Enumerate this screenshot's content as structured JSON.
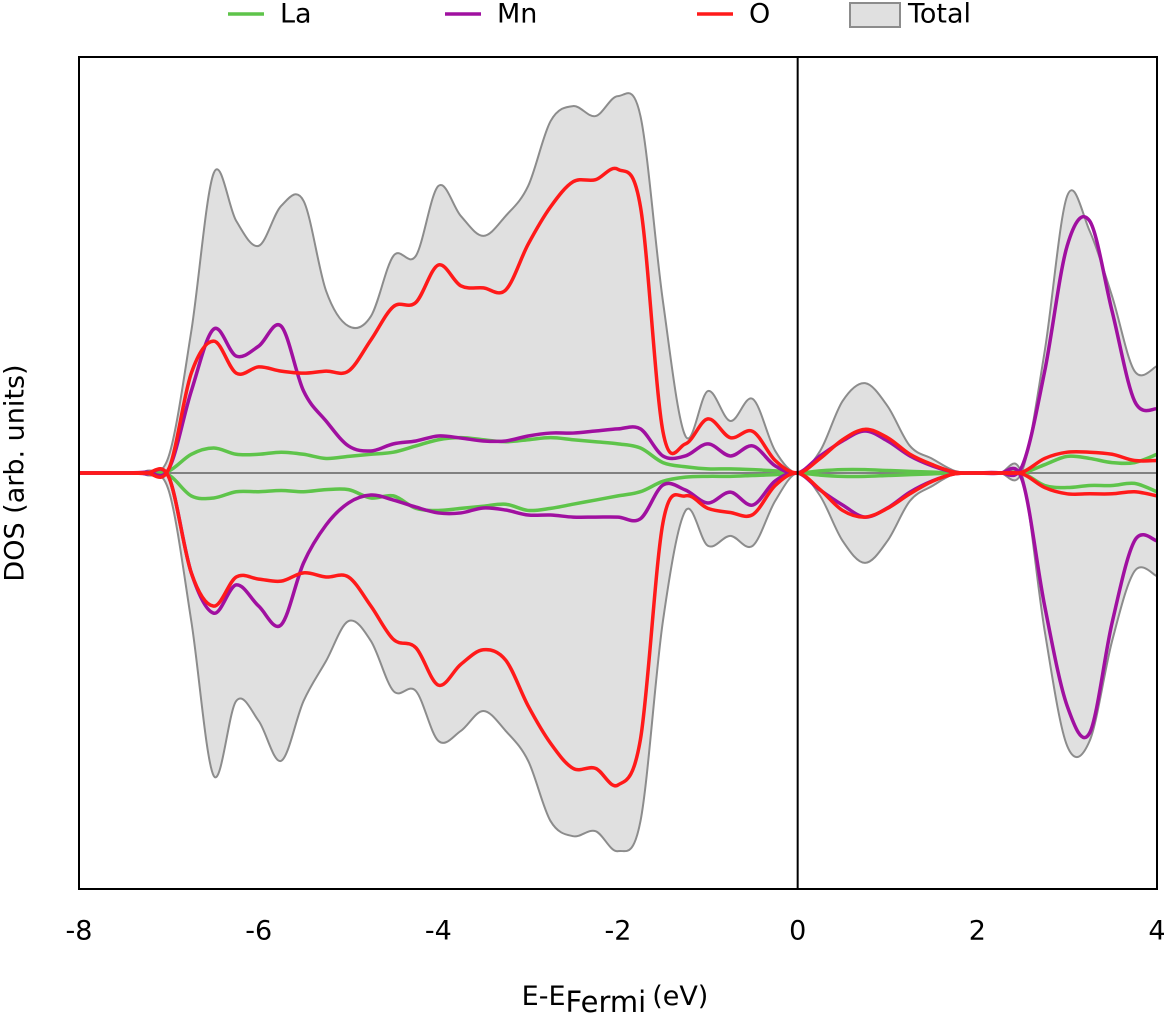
{
  "chart_data": {
    "type": "dos",
    "xlabel": "E-E",
    "xlabel_sub": "Fermi",
    "xlabel_suffix": "(eV)",
    "ylabel": "DOS (arb. units)",
    "xlim": [
      -8,
      4
    ],
    "xticks": [
      -8,
      -6,
      -4,
      -2,
      0,
      2,
      4
    ],
    "ylim": [
      -10,
      10
    ],
    "vline": 0,
    "legend": "top",
    "x": [
      -8,
      -7.75,
      -7.5,
      -7.25,
      -7,
      -6.75,
      -6.5,
      -6.25,
      -6,
      -5.75,
      -5.5,
      -5.25,
      -5,
      -4.75,
      -4.5,
      -4.25,
      -4,
      -3.75,
      -3.5,
      -3.25,
      -3,
      -2.75,
      -2.5,
      -2.25,
      -2,
      -1.75,
      -1.5,
      -1.25,
      -1,
      -0.75,
      -0.5,
      -0.25,
      0,
      0.25,
      0.5,
      0.75,
      1,
      1.25,
      1.5,
      1.75,
      2,
      2.25,
      2.5,
      2.75,
      3,
      3.25,
      3.5,
      3.75,
      4
    ],
    "series": [
      {
        "name": "La",
        "color": "#5ec44a",
        "style": "line",
        "values": [
          0,
          0,
          0,
          0,
          0.05,
          0.45,
          0.6,
          0.45,
          0.45,
          0.5,
          0.45,
          0.35,
          0.4,
          0.45,
          0.5,
          0.65,
          0.8,
          0.85,
          0.8,
          0.75,
          0.8,
          0.85,
          0.8,
          0.75,
          0.7,
          0.6,
          0.25,
          0.15,
          0.1,
          0.1,
          0.08,
          0.05,
          0,
          0.05,
          0.08,
          0.08,
          0.06,
          0.04,
          0.02,
          0,
          0,
          0,
          0,
          0.2,
          0.4,
          0.35,
          0.25,
          0.25,
          0.45
        ],
        "values_down": [
          0,
          0,
          0,
          0,
          -0.05,
          -0.55,
          -0.6,
          -0.45,
          -0.45,
          -0.42,
          -0.45,
          -0.4,
          -0.4,
          -0.6,
          -0.55,
          -0.85,
          -0.9,
          -0.85,
          -0.8,
          -0.75,
          -0.9,
          -0.85,
          -0.75,
          -0.65,
          -0.55,
          -0.45,
          -0.2,
          -0.1,
          -0.08,
          -0.08,
          -0.06,
          -0.04,
          0,
          -0.05,
          -0.08,
          -0.08,
          -0.06,
          -0.04,
          -0.02,
          0,
          0,
          0,
          0,
          -0.3,
          -0.35,
          -0.3,
          -0.3,
          -0.25,
          -0.45
        ]
      },
      {
        "name": "Mn",
        "color": "#a010a0",
        "style": "line",
        "values": [
          0,
          0,
          0,
          0.02,
          0.1,
          1.97,
          3.46,
          2.81,
          3.05,
          3.53,
          1.97,
          1.25,
          0.65,
          0.53,
          0.7,
          0.77,
          0.89,
          0.84,
          0.77,
          0.77,
          0.89,
          0.96,
          0.96,
          1.01,
          1.06,
          1.06,
          0.41,
          0.41,
          0.7,
          0.41,
          0.65,
          0.17,
          0,
          0.41,
          0.77,
          1.01,
          0.77,
          0.41,
          0.17,
          0.02,
          0,
          0,
          0.17,
          2.45,
          5.46,
          6.06,
          3.89,
          1.73,
          1.54
        ],
        "values_down": [
          0,
          0,
          0,
          -0.02,
          -0.1,
          -2.4,
          -3.37,
          -2.69,
          -3.2,
          -3.65,
          -2.16,
          -1.25,
          -0.72,
          -0.53,
          -0.65,
          -0.82,
          -0.96,
          -0.96,
          -0.84,
          -0.89,
          -1.01,
          -1.01,
          -1.06,
          -1.06,
          -1.06,
          -1.1,
          -0.29,
          -0.41,
          -0.72,
          -0.46,
          -0.77,
          -0.19,
          0,
          -0.41,
          -0.77,
          -1.06,
          -0.84,
          -0.46,
          -0.19,
          -0.02,
          0,
          0,
          -0.17,
          -3.2,
          -5.6,
          -6.25,
          -3.6,
          -1.63,
          -1.63
        ]
      },
      {
        "name": "O",
        "color": "#ff1a1a",
        "style": "line",
        "values": [
          0,
          0,
          0,
          0,
          0.1,
          2.4,
          3.17,
          2.4,
          2.55,
          2.45,
          2.4,
          2.45,
          2.45,
          3.2,
          4.0,
          4.1,
          5.0,
          4.5,
          4.45,
          4.4,
          5.5,
          6.4,
          7.0,
          7.05,
          7.3,
          6.4,
          1.0,
          0.7,
          1.3,
          0.85,
          1.0,
          0.3,
          0,
          0.35,
          0.8,
          1.05,
          0.85,
          0.45,
          0.2,
          0.02,
          0,
          0,
          0.02,
          0.35,
          0.5,
          0.5,
          0.45,
          0.3,
          0.3
        ],
        "values_down": [
          0,
          0,
          0,
          0,
          -0.1,
          -2.4,
          -3.2,
          -2.5,
          -2.55,
          -2.6,
          -2.4,
          -2.5,
          -2.5,
          -3.2,
          -4.0,
          -4.2,
          -5.1,
          -4.6,
          -4.25,
          -4.5,
          -5.6,
          -6.5,
          -7.1,
          -7.1,
          -7.5,
          -6.4,
          -1.2,
          -0.55,
          -0.85,
          -0.95,
          -1.0,
          -0.3,
          0,
          -0.4,
          -0.9,
          -1.06,
          -0.85,
          -0.5,
          -0.2,
          -0.02,
          0,
          0,
          -0.02,
          -0.35,
          -0.5,
          -0.5,
          -0.5,
          -0.45,
          -0.55
        ]
      },
      {
        "name": "Total",
        "color": "#e0e0e0",
        "edge": "#8c8c8c",
        "style": "area",
        "values": [
          0,
          0,
          0,
          0.05,
          0.41,
          3.41,
          7.21,
          6.06,
          5.46,
          6.42,
          6.54,
          4.38,
          3.53,
          3.77,
          5.22,
          5.22,
          6.9,
          6.18,
          5.7,
          6.18,
          6.9,
          8.46,
          8.82,
          8.58,
          9.06,
          8.58,
          4.13,
          0.89,
          1.97,
          1.25,
          1.78,
          0.53,
          0,
          0.53,
          1.73,
          2.16,
          1.61,
          0.65,
          0.34,
          0.05,
          0,
          0,
          0.05,
          2.93,
          6.66,
          5.82,
          4.25,
          2.45,
          2.57
        ],
        "values_down": [
          0,
          0,
          0,
          -0.05,
          -0.43,
          -3.56,
          -7.28,
          -5.48,
          -5.96,
          -6.92,
          -5.48,
          -4.52,
          -3.56,
          -4.04,
          -5.24,
          -5.24,
          -6.44,
          -6.2,
          -5.72,
          -6.2,
          -6.92,
          -8.37,
          -8.73,
          -8.61,
          -9.09,
          -8.37,
          -3.56,
          -0.91,
          -1.75,
          -1.51,
          -1.75,
          -0.67,
          0,
          -0.55,
          -1.63,
          -2.16,
          -1.63,
          -0.67,
          -0.31,
          -0.02,
          0,
          0,
          -0.07,
          -3.8,
          -6.56,
          -6.44,
          -4.04,
          -2.36,
          -2.48
        ]
      }
    ]
  }
}
